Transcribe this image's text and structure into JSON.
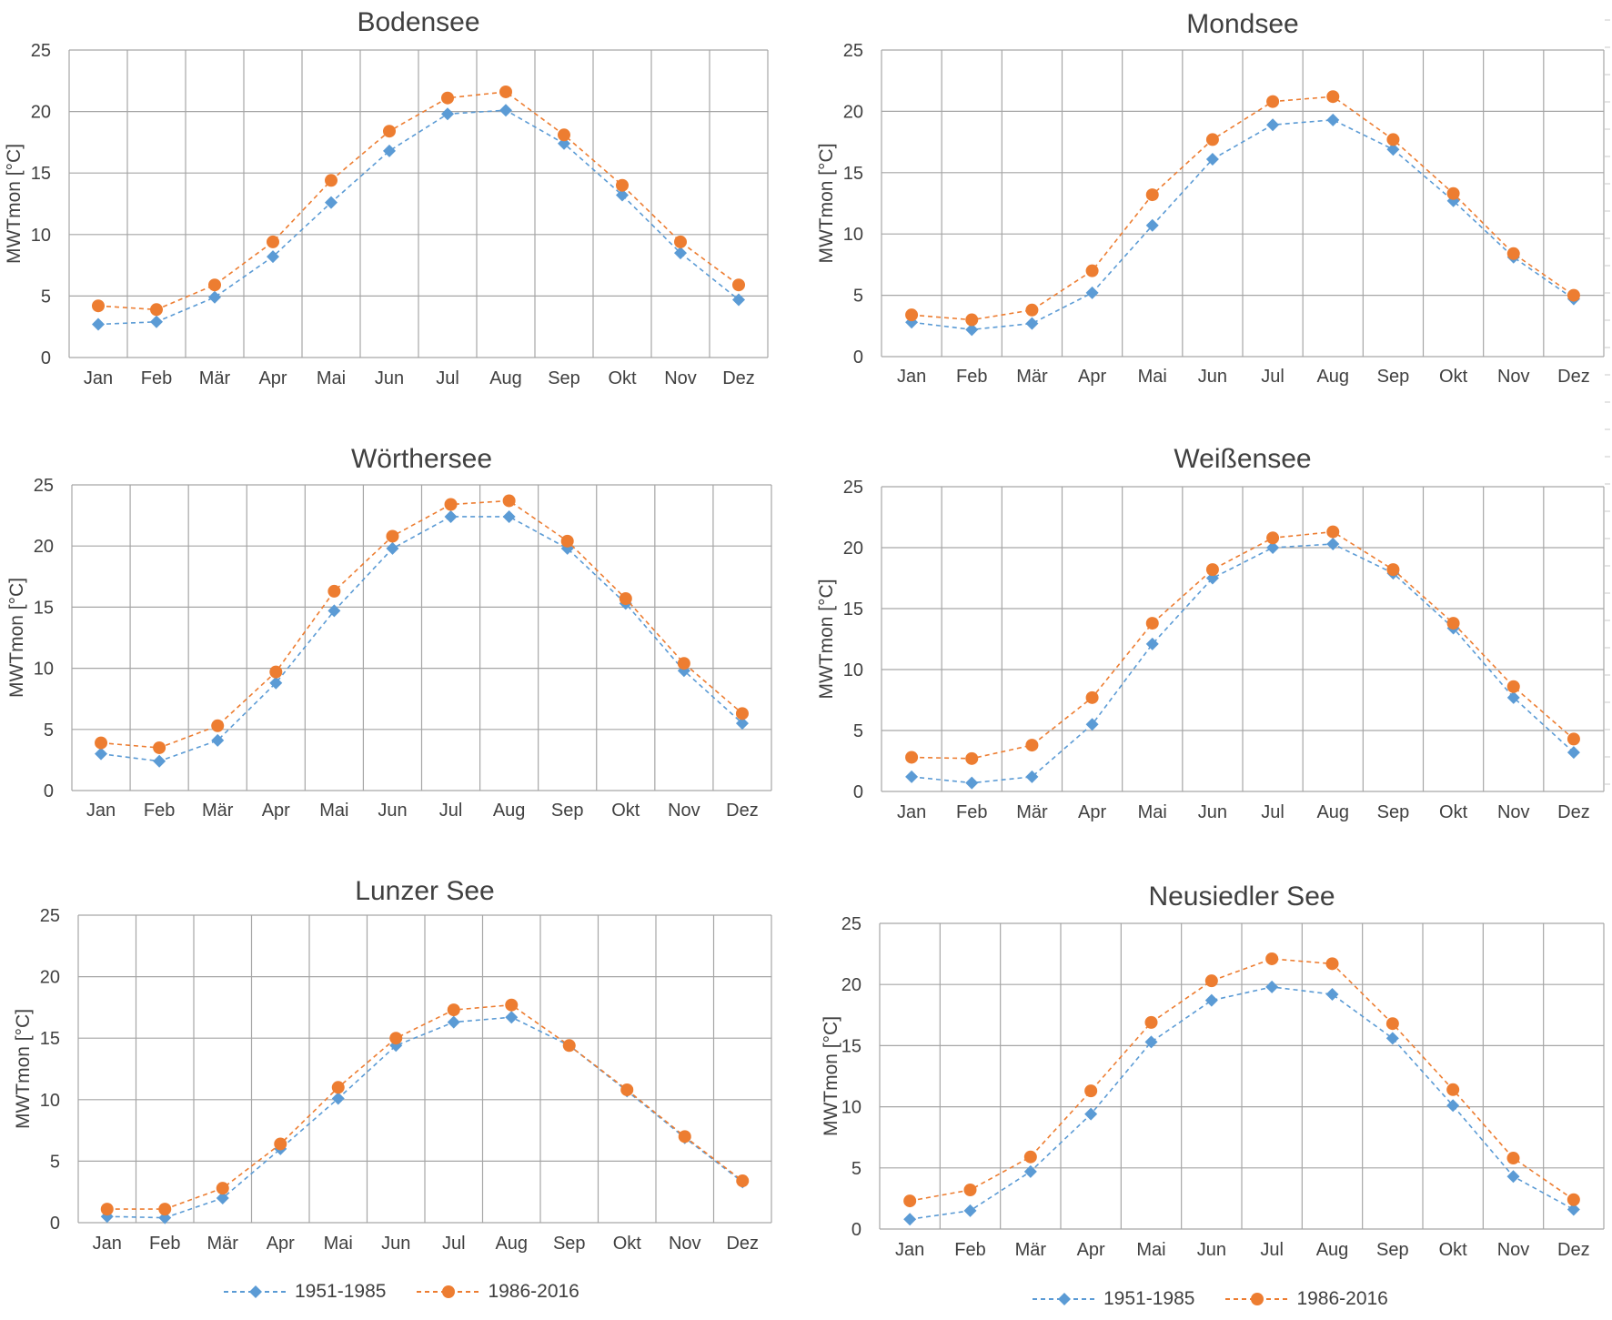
{
  "legend": {
    "series1": "1951-1985",
    "series2": "1986-2016"
  },
  "colors": {
    "series1": "#5B9BD5",
    "series2": "#ED7D31",
    "grid": "#A6A6A6",
    "text": "#404040"
  },
  "chart_data": [
    {
      "type": "line",
      "title": "Bodensee",
      "ylabel": "MWTmon [°C]",
      "xlabel": "",
      "categories": [
        "Jan",
        "Feb",
        "Mär",
        "Apr",
        "Mai",
        "Jun",
        "Jul",
        "Aug",
        "Sep",
        "Okt",
        "Nov",
        "Dez"
      ],
      "ylim": [
        0,
        25
      ],
      "yticks": [
        0,
        5,
        10,
        15,
        20,
        25
      ],
      "grid": true,
      "series": [
        {
          "name": "1951-1985",
          "values": [
            2.7,
            2.9,
            4.9,
            8.2,
            12.6,
            16.8,
            19.8,
            20.1,
            17.4,
            13.2,
            8.5,
            4.7
          ]
        },
        {
          "name": "1986-2016",
          "values": [
            4.2,
            3.9,
            5.9,
            9.4,
            14.4,
            18.4,
            21.1,
            21.6,
            18.1,
            14.0,
            9.4,
            5.9
          ]
        }
      ]
    },
    {
      "type": "line",
      "title": "Mondsee",
      "ylabel": "MWTmon [°C]",
      "xlabel": "",
      "categories": [
        "Jan",
        "Feb",
        "Mär",
        "Apr",
        "Mai",
        "Jun",
        "Jul",
        "Aug",
        "Sep",
        "Okt",
        "Nov",
        "Dez"
      ],
      "ylim": [
        0,
        25
      ],
      "yticks": [
        0,
        5,
        10,
        15,
        20,
        25
      ],
      "grid": true,
      "series": [
        {
          "name": "1951-1985",
          "values": [
            2.8,
            2.2,
            2.7,
            5.2,
            10.7,
            16.1,
            18.9,
            19.3,
            16.9,
            12.7,
            8.1,
            4.7
          ]
        },
        {
          "name": "1986-2016",
          "values": [
            3.4,
            3.0,
            3.8,
            7.0,
            13.2,
            17.7,
            20.8,
            21.2,
            17.7,
            13.3,
            8.4,
            5.0
          ]
        }
      ]
    },
    {
      "type": "line",
      "title": "Wörthersee",
      "ylabel": "MWTmon [°C]",
      "xlabel": "",
      "categories": [
        "Jan",
        "Feb",
        "Mär",
        "Apr",
        "Mai",
        "Jun",
        "Jul",
        "Aug",
        "Sep",
        "Okt",
        "Nov",
        "Dez"
      ],
      "ylim": [
        0,
        25
      ],
      "yticks": [
        0,
        5,
        10,
        15,
        20,
        25
      ],
      "grid": true,
      "series": [
        {
          "name": "1951-1985",
          "values": [
            3.0,
            2.4,
            4.1,
            8.8,
            14.7,
            19.8,
            22.4,
            22.4,
            19.8,
            15.3,
            9.8,
            5.5
          ]
        },
        {
          "name": "1986-2016",
          "values": [
            3.9,
            3.5,
            5.3,
            9.7,
            16.3,
            20.8,
            23.4,
            23.7,
            20.4,
            15.7,
            10.4,
            6.3
          ]
        }
      ]
    },
    {
      "type": "line",
      "title": "Weißensee",
      "ylabel": "MWTmon [°C]",
      "xlabel": "",
      "categories": [
        "Jan",
        "Feb",
        "Mär",
        "Apr",
        "Mai",
        "Jun",
        "Jul",
        "Aug",
        "Sep",
        "Okt",
        "Nov",
        "Dez"
      ],
      "ylim": [
        0,
        25
      ],
      "yticks": [
        0,
        5,
        10,
        15,
        20,
        25
      ],
      "grid": true,
      "series": [
        {
          "name": "1951-1985",
          "values": [
            1.2,
            0.7,
            1.2,
            5.5,
            12.1,
            17.5,
            20.0,
            20.3,
            17.9,
            13.4,
            7.7,
            3.2
          ]
        },
        {
          "name": "1986-2016",
          "values": [
            2.8,
            2.7,
            3.8,
            7.7,
            13.8,
            18.2,
            20.8,
            21.3,
            18.2,
            13.8,
            8.6,
            4.3
          ]
        }
      ]
    },
    {
      "type": "line",
      "title": "Lunzer See",
      "ylabel": "MWTmon [°C]",
      "xlabel": "",
      "categories": [
        "Jan",
        "Feb",
        "Mär",
        "Apr",
        "Mai",
        "Jun",
        "Jul",
        "Aug",
        "Sep",
        "Okt",
        "Nov",
        "Dez"
      ],
      "ylim": [
        0,
        25
      ],
      "yticks": [
        0,
        5,
        10,
        15,
        20,
        25
      ],
      "grid": true,
      "series": [
        {
          "name": "1951-1985",
          "values": [
            0.5,
            0.4,
            2.0,
            6.0,
            10.1,
            14.4,
            16.3,
            16.7,
            14.4,
            10.7,
            6.9,
            3.3
          ]
        },
        {
          "name": "1986-2016",
          "values": [
            1.1,
            1.1,
            2.8,
            6.4,
            11.0,
            15.0,
            17.3,
            17.7,
            14.4,
            10.8,
            7.0,
            3.4
          ]
        }
      ]
    },
    {
      "type": "line",
      "title": "Neusiedler See",
      "ylabel": "MWTmon [°C]",
      "xlabel": "",
      "categories": [
        "Jan",
        "Feb",
        "Mär",
        "Apr",
        "Mai",
        "Jun",
        "Jul",
        "Aug",
        "Sep",
        "Okt",
        "Nov",
        "Dez"
      ],
      "ylim": [
        0,
        25
      ],
      "yticks": [
        0,
        5,
        10,
        15,
        20,
        25
      ],
      "grid": true,
      "series": [
        {
          "name": "1951-1985",
          "values": [
            0.8,
            1.5,
            4.7,
            9.4,
            15.3,
            18.7,
            19.8,
            19.2,
            15.6,
            10.1,
            4.3,
            1.6
          ]
        },
        {
          "name": "1986-2016",
          "values": [
            2.3,
            3.2,
            5.9,
            11.3,
            16.9,
            20.3,
            22.1,
            21.7,
            16.8,
            11.4,
            5.8,
            2.4
          ]
        }
      ]
    }
  ]
}
